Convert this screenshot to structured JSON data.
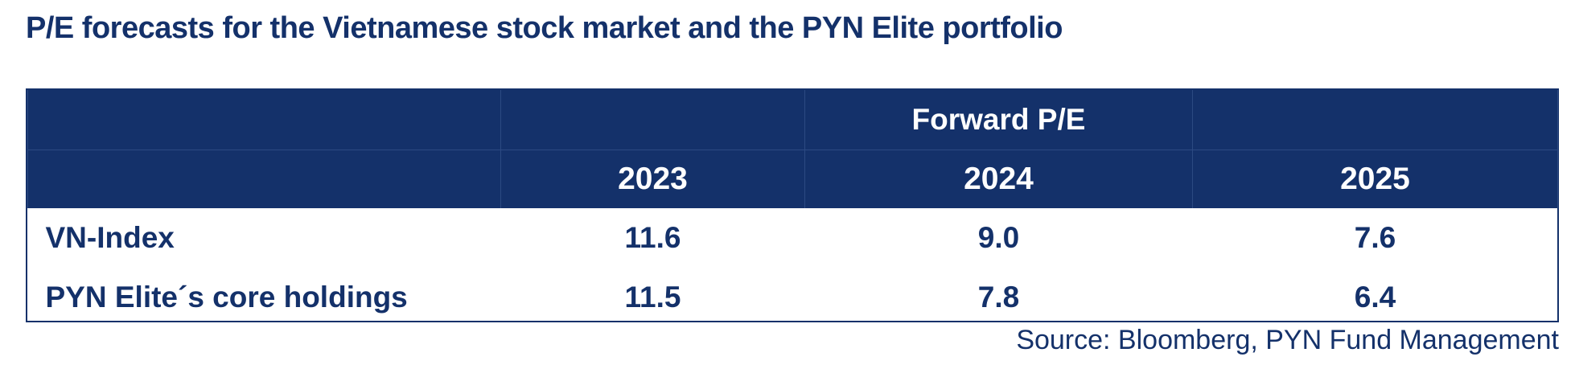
{
  "title": "P/E forecasts for the Vietnamese stock market and the PYN Elite portfolio",
  "table": {
    "group_header": "Forward P/E",
    "years": [
      "2023",
      "2024",
      "2025"
    ],
    "rows": [
      {
        "label": "VN-Index",
        "values": [
          "11.6",
          "9.0",
          "7.6"
        ]
      },
      {
        "label": "PYN Elite´s core holdings",
        "values": [
          "11.5",
          "7.8",
          "6.4"
        ]
      }
    ]
  },
  "source": "Source: Bloomberg, PYN Fund Management",
  "colors": {
    "header_bg": "#14316a",
    "text": "#14316a"
  }
}
